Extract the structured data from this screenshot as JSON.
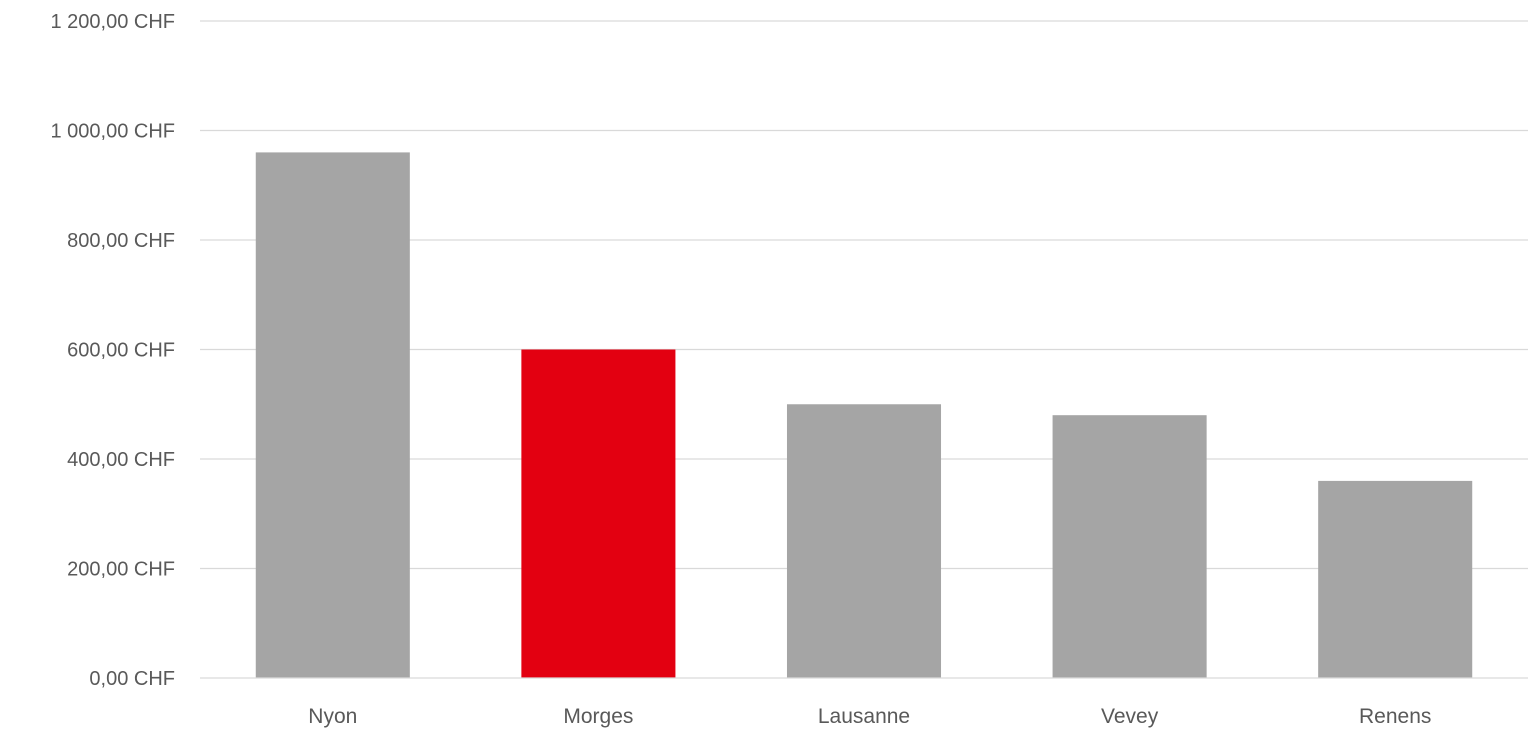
{
  "chart_data": {
    "type": "bar",
    "title": "",
    "xlabel": "",
    "ylabel": "",
    "categories": [
      "Nyon",
      "Morges",
      "Lausanne",
      "Vevey",
      "Renens"
    ],
    "values": [
      960,
      600,
      500,
      480,
      360
    ],
    "bar_colors": [
      "#a5a5a5",
      "#e30011",
      "#a5a5a5",
      "#a5a5a5",
      "#a5a5a5"
    ],
    "ylim": [
      0,
      1200
    ],
    "yticks": [
      0,
      200,
      400,
      600,
      800,
      1000,
      1200
    ],
    "ytick_labels": [
      "0,00 CHF",
      "200,00 CHF",
      "400,00 CHF",
      "600,00 CHF",
      "800,00 CHF",
      "1 000,00 CHF",
      "1 200,00 CHF"
    ],
    "grid": true,
    "legend": "none"
  }
}
